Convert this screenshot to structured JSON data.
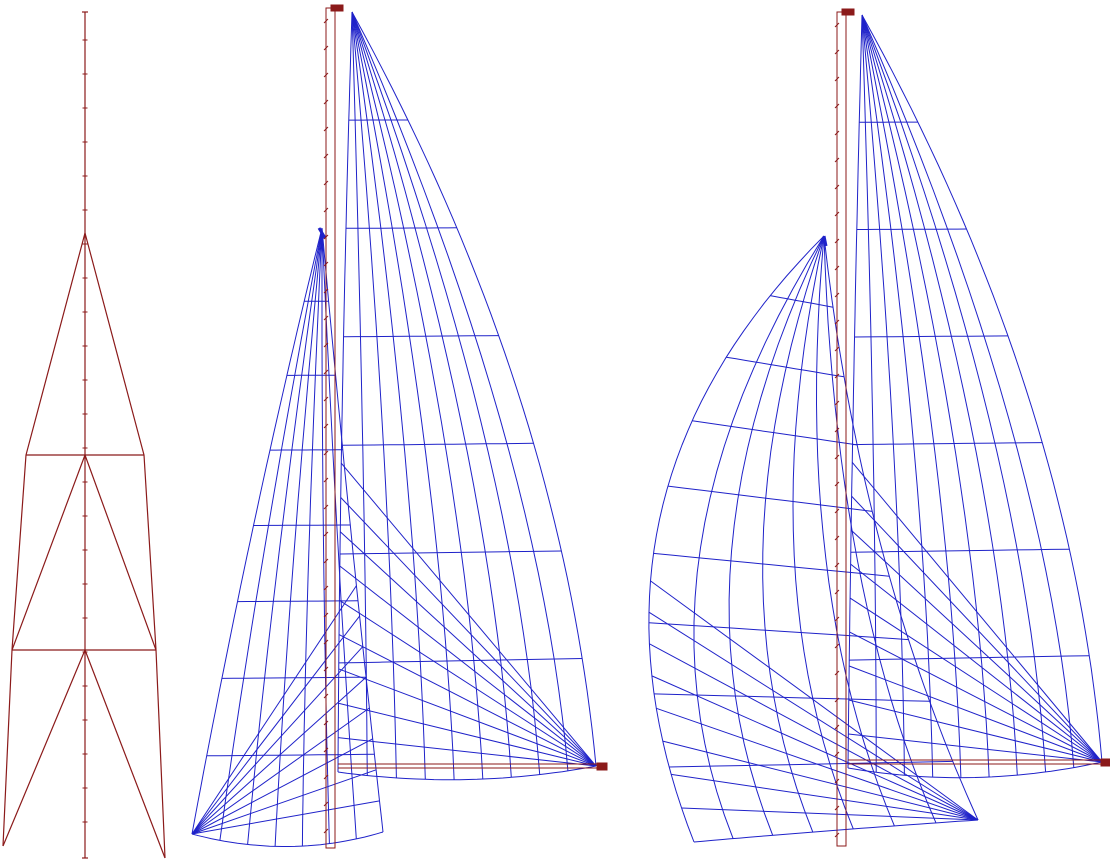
{
  "colors": {
    "background": "#ffffff",
    "rig": "#8b1a1a",
    "sail_mesh": "#1f22c9"
  },
  "figure": {
    "views": [
      {
        "id": "mast-rig",
        "kind": "mast and shrouds"
      },
      {
        "id": "rig-with-jib",
        "kind": "mainsail and jib mesh"
      },
      {
        "id": "rig-with-gennaker",
        "kind": "mainsail and gennaker mesh"
      }
    ]
  }
}
